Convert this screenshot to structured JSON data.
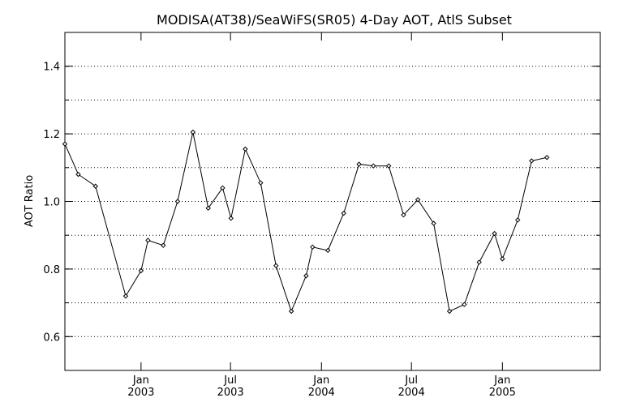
{
  "chart_data": {
    "type": "line",
    "title": "MODISA(AT38)/SeaWiFS(SR05) 4-Day AOT, AtlS Subset",
    "xlabel": "",
    "ylabel": "AOT Ratio",
    "ylim": [
      0.5,
      1.5
    ],
    "xlim": [
      "2002-07-31",
      "2005-07-18"
    ],
    "y_ticks": [
      0.6,
      0.8,
      1.0,
      1.2,
      1.4
    ],
    "y_tick_labels": [
      "0.6",
      "0.8",
      "1.0",
      "1.2",
      "1.4"
    ],
    "x_ticks": [
      {
        "date": "2003-01-01",
        "month": "Jan",
        "year": "2003"
      },
      {
        "date": "2003-07-01",
        "month": "Jul",
        "year": "2003"
      },
      {
        "date": "2004-01-01",
        "month": "Jan",
        "year": "2004"
      },
      {
        "date": "2004-07-01",
        "month": "Jul",
        "year": "2004"
      },
      {
        "date": "2005-01-01",
        "month": "Jan",
        "year": "2005"
      }
    ],
    "grid": {
      "y_dotted": true,
      "y_step": 0.1
    },
    "marker": "diamond",
    "series": [
      {
        "x": [
          "2002-07-31",
          "2002-08-27",
          "2002-10-01",
          "2002-12-01",
          "2003-01-01",
          "2003-01-15",
          "2003-02-15",
          "2003-03-16",
          "2003-04-16",
          "2003-05-17",
          "2003-06-15",
          "2003-07-02",
          "2003-07-31",
          "2003-08-31",
          "2003-10-01",
          "2003-11-01",
          "2003-12-01",
          "2003-12-14",
          "2004-01-14",
          "2004-02-15",
          "2004-03-17",
          "2004-04-15",
          "2004-05-16",
          "2004-06-15",
          "2004-07-14",
          "2004-08-15",
          "2004-09-16",
          "2004-10-16",
          "2004-11-15",
          "2004-12-16",
          "2005-01-01",
          "2005-02-01",
          "2005-03-01",
          "2005-04-01"
        ],
        "values": [
          1.17,
          1.08,
          1.045,
          0.72,
          0.795,
          0.885,
          0.87,
          1.0,
          1.205,
          0.98,
          1.04,
          0.95,
          1.155,
          1.055,
          0.81,
          0.675,
          0.78,
          0.865,
          0.855,
          0.965,
          1.11,
          1.105,
          1.105,
          0.96,
          1.005,
          0.935,
          0.675,
          0.695,
          0.82,
          0.905,
          0.83,
          0.945,
          1.12,
          1.13
        ]
      }
    ]
  }
}
